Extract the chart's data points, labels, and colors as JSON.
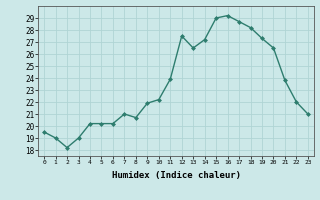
{
  "x": [
    0,
    1,
    2,
    3,
    4,
    5,
    6,
    7,
    8,
    9,
    10,
    11,
    12,
    13,
    14,
    15,
    16,
    17,
    18,
    19,
    20,
    21,
    22,
    23
  ],
  "y": [
    19.5,
    19.0,
    18.2,
    19.0,
    20.2,
    20.2,
    20.2,
    21.0,
    20.7,
    21.9,
    22.2,
    23.9,
    27.5,
    26.5,
    27.2,
    29.0,
    29.2,
    28.7,
    28.2,
    27.3,
    26.5,
    23.8,
    22.0,
    21.0
  ],
  "line_color": "#2e7d6e",
  "marker_color": "#2e7d6e",
  "bg_color": "#cce8e8",
  "grid_color": "#b0d4d4",
  "xlabel": "Humidex (Indice chaleur)",
  "ylim_min": 17.5,
  "ylim_max": 30.0,
  "yticks": [
    18,
    19,
    20,
    21,
    22,
    23,
    24,
    25,
    26,
    27,
    28,
    29
  ],
  "xticks": [
    0,
    1,
    2,
    3,
    4,
    5,
    6,
    7,
    8,
    9,
    10,
    11,
    12,
    13,
    14,
    15,
    16,
    17,
    18,
    19,
    20,
    21,
    22,
    23
  ]
}
